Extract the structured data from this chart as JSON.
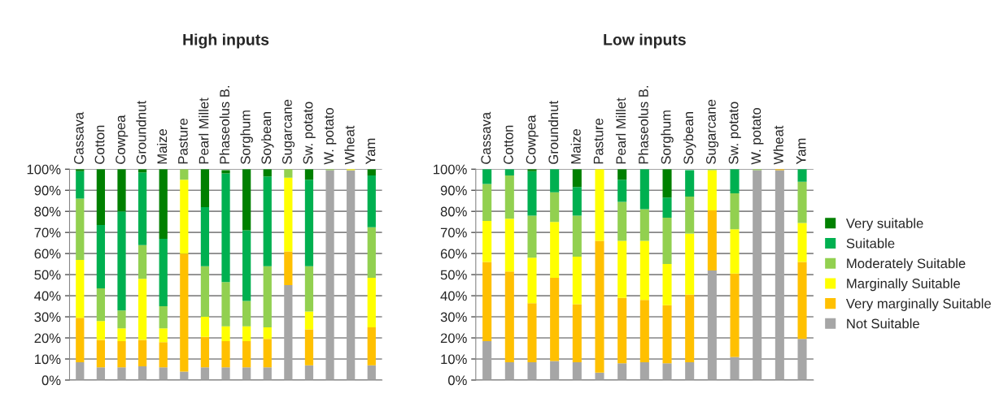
{
  "chart_data": [
    {
      "type": "bar",
      "title": "High inputs",
      "stacked": true,
      "legend": false,
      "grid": "y",
      "categories": [
        "Cassava",
        "Cotton",
        "Cowpea",
        "Groundnut",
        "Maize",
        "Pasture",
        "Pearl Millet",
        "Phaseolus B.",
        "Sorghum",
        "Soybean",
        "Sugarcane",
        "Sw. potato",
        "W. potato",
        "Wheat",
        "Yam"
      ],
      "ylim": [
        0,
        100
      ],
      "yticks": [
        {
          "value": 0,
          "label": "0%"
        },
        {
          "value": 10,
          "label": "10%"
        },
        {
          "value": 20,
          "label": "20%"
        },
        {
          "value": 30,
          "label": "30%"
        },
        {
          "value": 40,
          "label": "40%"
        },
        {
          "value": 50,
          "label": "50%"
        },
        {
          "value": 60,
          "label": "60%"
        },
        {
          "value": 70,
          "label": "70%"
        },
        {
          "value": 80,
          "label": "80%"
        },
        {
          "value": 90,
          "label": "90%"
        },
        {
          "value": 100,
          "label": "100%"
        }
      ],
      "series": [
        {
          "color": "#a6a6a6",
          "values": [
            8.5,
            6,
            6,
            6.5,
            6,
            4,
            6,
            6,
            6,
            6,
            45,
            7,
            99.5,
            99.5,
            7
          ]
        },
        {
          "color": "#ffc000",
          "values": [
            21,
            13,
            12.5,
            12.5,
            12,
            56,
            14.5,
            12.5,
            12.5,
            13.5,
            16,
            17,
            0,
            0,
            18
          ]
        },
        {
          "color": "#ffff00",
          "values": [
            27.5,
            9,
            6,
            29,
            6.5,
            35,
            9.5,
            7,
            7,
            5.5,
            35,
            8.5,
            0,
            0.5,
            23.5
          ]
        },
        {
          "color": "#92d050",
          "values": [
            29,
            15.5,
            8.5,
            16,
            10.5,
            5,
            24,
            21,
            12,
            29,
            4,
            21.5,
            0.5,
            0,
            24
          ]
        },
        {
          "color": "#00b050",
          "values": [
            13,
            30,
            47,
            34.5,
            32,
            0,
            28,
            51.5,
            33.5,
            42.5,
            0,
            41,
            0,
            0,
            24.5
          ]
        },
        {
          "color": "#008000",
          "values": [
            1,
            26.5,
            20,
            1.5,
            33,
            0,
            18,
            1.5,
            29,
            3.5,
            0,
            5,
            0,
            0,
            3
          ]
        }
      ]
    },
    {
      "type": "bar",
      "title": "Low inputs",
      "stacked": true,
      "legend": "right",
      "grid": "y",
      "categories": [
        "Cassava",
        "Cotton",
        "Cowpea",
        "Groundnut",
        "Maize",
        "Pasture",
        "Pearl Millet",
        "Phaseolus B.",
        "Sorghum",
        "Soybean",
        "Sugarcane",
        "Sw. potato",
        "W. potato",
        "Wheat",
        "Yam"
      ],
      "ylim": [
        0,
        100
      ],
      "yticks": [
        {
          "value": 0,
          "label": "0%"
        },
        {
          "value": 10,
          "label": "10%"
        },
        {
          "value": 20,
          "label": "20%"
        },
        {
          "value": 30,
          "label": "30%"
        },
        {
          "value": 40,
          "label": "40%"
        },
        {
          "value": 50,
          "label": "50%"
        },
        {
          "value": 60,
          "label": "60%"
        },
        {
          "value": 70,
          "label": "70%"
        },
        {
          "value": 80,
          "label": "80%"
        },
        {
          "value": 90,
          "label": "90%"
        },
        {
          "value": 100,
          "label": "100%"
        }
      ],
      "series": [
        {
          "name": "Not Suitable",
          "color": "#a6a6a6",
          "values": [
            18.5,
            8.5,
            8.5,
            9,
            8.5,
            3.5,
            8,
            8.5,
            8,
            8.5,
            52,
            11,
            99.5,
            99.5,
            19.5
          ]
        },
        {
          "name": "Very marginally Suitable",
          "color": "#ffc000",
          "values": [
            37.5,
            43,
            28,
            39.5,
            27.5,
            62.5,
            31,
            29.5,
            27.5,
            32,
            28.5,
            39.5,
            0,
            0.5,
            36.5
          ]
        },
        {
          "name": "Marginally Suitable",
          "color": "#ffff00",
          "values": [
            19.5,
            25,
            21.5,
            26.5,
            22.5,
            34,
            27,
            28,
            19.5,
            29,
            19,
            21,
            0,
            0,
            18.5
          ]
        },
        {
          "name": "Moderately Suitable",
          "color": "#92d050",
          "values": [
            17.5,
            20.5,
            20,
            14,
            19.5,
            0,
            18.5,
            15,
            22,
            17.5,
            0.5,
            17,
            0.5,
            0,
            19.5
          ]
        },
        {
          "name": "Suitable",
          "color": "#00b050",
          "values": [
            7,
            3,
            21,
            11,
            13.5,
            0,
            10.5,
            19,
            9.5,
            12.5,
            0,
            11.5,
            0,
            0,
            6
          ]
        },
        {
          "name": "Very suitable",
          "color": "#008000",
          "values": [
            0,
            0,
            1,
            0,
            8.5,
            0,
            5,
            0,
            13.5,
            0,
            0,
            0,
            0,
            0,
            0
          ]
        }
      ]
    }
  ]
}
